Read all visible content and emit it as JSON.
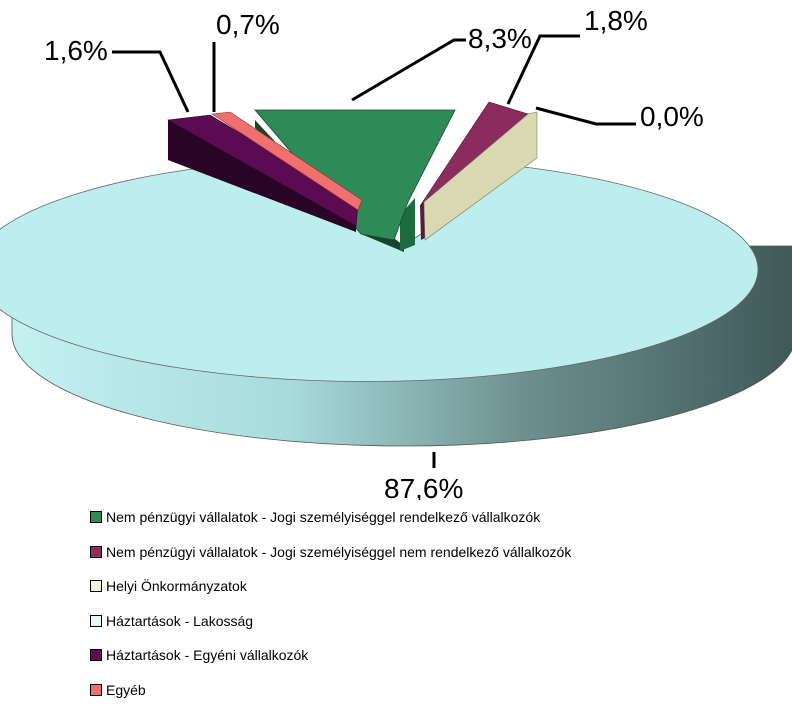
{
  "chart_data": {
    "type": "pie",
    "title": "",
    "slices": [
      {
        "label": "Nem pénzügyi vállalatok - Jogi személyiséggel rendelkező vállalkozók",
        "value": 8.3,
        "display": "8,3%",
        "color": "#2e8b57"
      },
      {
        "label": "Nem pénzügyi vállalatok - Jogi személyiséggel nem rendelkező vállalkozók",
        "value": 1.8,
        "display": "1,8%",
        "color": "#8b2c5c"
      },
      {
        "label": "Helyi Önkormányzatok",
        "value": 0.0,
        "display": "0,0%",
        "color": "#d9d8b0"
      },
      {
        "label": "Háztartások - Lakosság",
        "value": 87.6,
        "display": "87,6%",
        "color": "#bdeeee"
      },
      {
        "label": "Háztartások - Egyéni vállalkozók",
        "value": 1.6,
        "display": "1,6%",
        "color": "#5c0a52"
      },
      {
        "label": "Egyéb",
        "value": 0.7,
        "display": "0,7%",
        "color": "#f07070"
      }
    ],
    "legend_position": "bottom"
  }
}
